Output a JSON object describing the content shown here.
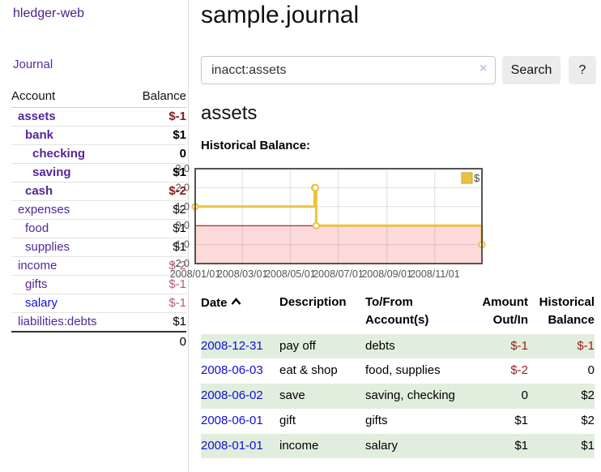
{
  "app": {
    "title": "hledger-web"
  },
  "sidebar": {
    "journal_link": "Journal",
    "table": {
      "account_header": "Account",
      "balance_header": "Balance",
      "rows": [
        {
          "name": "assets",
          "balance": "$-1",
          "indent": 1,
          "bold": true,
          "balance_style": "neg-strong"
        },
        {
          "name": "bank",
          "balance": "$1",
          "indent": 2,
          "bold": true,
          "balance_style": "pos"
        },
        {
          "name": "checking",
          "balance": "0",
          "indent": 3,
          "bold": true,
          "balance_style": "pos"
        },
        {
          "name": "saving",
          "balance": "$1",
          "indent": 3,
          "bold": true,
          "balance_style": "pos"
        },
        {
          "name": "cash",
          "balance": "$-2",
          "indent": 2,
          "bold": true,
          "balance_style": "neg-strong"
        },
        {
          "name": "expenses",
          "balance": "$2",
          "indent": 1,
          "bold": false,
          "balance_style": "pos"
        },
        {
          "name": "food",
          "balance": "$1",
          "indent": 2,
          "bold": false,
          "balance_style": "pos"
        },
        {
          "name": "supplies",
          "balance": "$1",
          "indent": 2,
          "bold": false,
          "balance_style": "pos"
        },
        {
          "name": "income",
          "balance": "$-2",
          "indent": 1,
          "bold": false,
          "balance_style": "neg-soft"
        },
        {
          "name": "gifts",
          "balance": "$-1",
          "indent": 2,
          "bold": false,
          "balance_style": "neg-soft"
        },
        {
          "name": "salary",
          "balance": "$-1",
          "indent": 2,
          "bold": false,
          "balance_style": "neg-soft",
          "link_color": "blue"
        },
        {
          "name": "liabilities:debts",
          "balance": "$1",
          "indent": 1,
          "bold": false,
          "balance_style": "pos"
        }
      ],
      "total": "0"
    }
  },
  "header": {
    "title": "sample.journal"
  },
  "search": {
    "value": "inacct:assets",
    "clear_icon": "×",
    "button_label": "Search",
    "help_label": "?"
  },
  "account_page": {
    "title": "assets",
    "chart_label": "Historical Balance:"
  },
  "chart_data": {
    "type": "line",
    "title": "Historical Balance",
    "step": true,
    "series": [
      {
        "name": "$",
        "color": "#edc240",
        "points": [
          [
            "2008-01-01",
            1
          ],
          [
            "2008-06-01",
            2
          ],
          [
            "2008-06-02",
            2
          ],
          [
            "2008-06-03",
            0
          ],
          [
            "2008-12-31",
            -1
          ]
        ]
      }
    ],
    "x_ticks": [
      "2008/01/01",
      "2008/03/01",
      "2008/05/01",
      "2008/07/01",
      "2008/09/01",
      "2008/11/01"
    ],
    "y_ticks": [
      3,
      2,
      1,
      0,
      -1,
      -2
    ],
    "xlim": [
      "2008-01-01",
      "2008-12-31"
    ],
    "ylim": [
      -2,
      3
    ],
    "legend": "$",
    "legend_position": "top-right",
    "grid": true,
    "negative_fill": "#fcdada",
    "zero_line_color": "#8b0000",
    "border_color": "#545454",
    "tick_color": "#545454"
  },
  "register": {
    "sort_icon": "chevron-up",
    "headers": {
      "date": "Date",
      "description": "Description",
      "account": "To/From Account(s)",
      "amount": "Amount Out/In",
      "balance": "Historical Balance"
    },
    "rows": [
      {
        "date": "2008-12-31",
        "description": "pay off",
        "accounts": "debts",
        "amount": "$-1",
        "balance": "$-1",
        "amount_style": "neg",
        "balance_style": "neg",
        "green": true
      },
      {
        "date": "2008-06-03",
        "description": "eat & shop",
        "accounts": "food, supplies",
        "amount": "$-2",
        "balance": "0",
        "amount_style": "neg",
        "balance_style": "pos",
        "green": false
      },
      {
        "date": "2008-06-02",
        "description": "save",
        "accounts": "saving, checking",
        "amount": "0",
        "balance": "$2",
        "amount_style": "pos",
        "balance_style": "pos",
        "green": true
      },
      {
        "date": "2008-06-01",
        "description": "gift",
        "accounts": "gifts",
        "amount": "$1",
        "balance": "$2",
        "amount_style": "pos",
        "balance_style": "pos",
        "green": false
      },
      {
        "date": "2008-01-01",
        "description": "income",
        "accounts": "salary",
        "amount": "$1",
        "balance": "$1",
        "amount_style": "pos",
        "balance_style": "pos",
        "green": true
      }
    ]
  }
}
